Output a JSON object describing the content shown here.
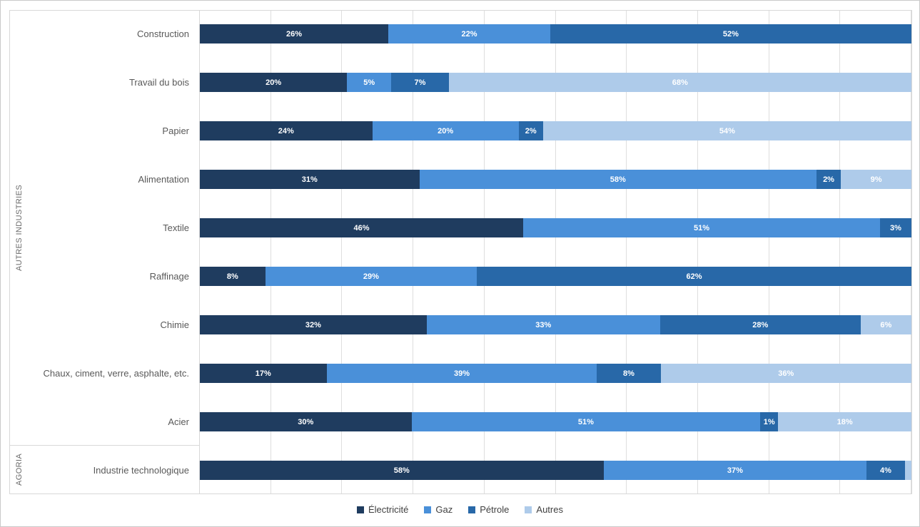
{
  "groups": [
    {
      "label": "AUTRES INDUSTRIES"
    },
    {
      "label": "AGORIA"
    }
  ],
  "legend": [
    {
      "name": "Électricité",
      "color": "#1F3C5F"
    },
    {
      "name": "Gaz",
      "color": "#4A90D9"
    },
    {
      "name": "Pétrole",
      "color": "#2868A8"
    },
    {
      "name": "Autres",
      "color": "#AECBEA"
    }
  ],
  "colors": {
    "electricite": "#1F3C5F",
    "gaz": "#4A90D9",
    "petrole": "#2868A8",
    "autres": "#AECBEA",
    "gridline": "#DEDEDE",
    "frame_border": "#D8D8D8",
    "category_text": "#595959",
    "legend_text": "#404040",
    "value_label_text": "#FFFFFF"
  },
  "chart_data": {
    "type": "bar",
    "variant": "horizontal-stacked-100",
    "unit": "percent",
    "xlim": [
      0,
      100
    ],
    "grid": {
      "vertical": true,
      "step_percent": 10,
      "horizontal": false
    },
    "axis_tick_labels_visible": false,
    "legend_position": "bottom-center",
    "series_names": [
      "Électricité",
      "Gaz",
      "Pétrole",
      "Autres"
    ],
    "categories": [
      "Construction",
      "Travail du bois",
      "Papier",
      "Alimentation",
      "Textile",
      "Raffinage",
      "Chimie",
      "Chaux, ciment, verre, asphalte, etc.",
      "Acier",
      "Industrie technologique"
    ],
    "rows": [
      {
        "category": "Construction",
        "group": "AUTRES INDUSTRIES",
        "segments": [
          {
            "series": "Électricité",
            "value": 26,
            "label": "26%"
          },
          {
            "series": "Gaz",
            "value": 22,
            "label": "22%"
          },
          {
            "series": "Pétrole",
            "value": 52,
            "label": "52%"
          },
          {
            "series": "Autres",
            "value": 0,
            "label": ""
          }
        ]
      },
      {
        "category": "Travail du bois",
        "group": "AUTRES INDUSTRIES",
        "segments": [
          {
            "series": "Électricité",
            "value": 20,
            "label": "20%"
          },
          {
            "series": "Gaz",
            "value": 5,
            "label": "5%"
          },
          {
            "series": "Pétrole",
            "value": 7,
            "label": "7%"
          },
          {
            "series": "Autres",
            "value": 68,
            "label": "68%"
          }
        ]
      },
      {
        "category": "Papier",
        "group": "AUTRES INDUSTRIES",
        "segments": [
          {
            "series": "Électricité",
            "value": 24,
            "label": "24%"
          },
          {
            "series": "Gaz",
            "value": 20,
            "label": "20%"
          },
          {
            "series": "Pétrole",
            "value": 2,
            "label": "2%"
          },
          {
            "series": "Autres",
            "value": 54,
            "label": "54%"
          }
        ]
      },
      {
        "category": "Alimentation",
        "group": "AUTRES INDUSTRIES",
        "segments": [
          {
            "series": "Électricité",
            "value": 31,
            "label": "31%"
          },
          {
            "series": "Gaz",
            "value": 58,
            "label": "58%"
          },
          {
            "series": "Pétrole",
            "value": 2,
            "label": "2%"
          },
          {
            "series": "Autres",
            "value": 9,
            "label": "9%"
          }
        ]
      },
      {
        "category": "Textile",
        "group": "AUTRES INDUSTRIES",
        "segments": [
          {
            "series": "Électricité",
            "value": 46,
            "label": "46%"
          },
          {
            "series": "Gaz",
            "value": 51,
            "label": "51%"
          },
          {
            "series": "Pétrole",
            "value": 3,
            "label": "3%"
          },
          {
            "series": "Autres",
            "value": 0,
            "label": ""
          }
        ]
      },
      {
        "category": "Raffinage",
        "group": "AUTRES INDUSTRIES",
        "segments": [
          {
            "series": "Électricité",
            "value": 8,
            "label": "8%"
          },
          {
            "series": "Gaz",
            "value": 29,
            "label": "29%"
          },
          {
            "series": "Pétrole",
            "value": 62,
            "label": "62%"
          },
          {
            "series": "Autres",
            "value": 0,
            "label": ""
          }
        ]
      },
      {
        "category": "Chimie",
        "group": "AUTRES INDUSTRIES",
        "segments": [
          {
            "series": "Électricité",
            "value": 32,
            "label": "32%"
          },
          {
            "series": "Gaz",
            "value": 33,
            "label": "33%"
          },
          {
            "series": "Pétrole",
            "value": 28,
            "label": "28%"
          },
          {
            "series": "Autres",
            "value": 6,
            "label": "6%"
          }
        ]
      },
      {
        "category": "Chaux, ciment, verre, asphalte, etc.",
        "group": "AUTRES INDUSTRIES",
        "segments": [
          {
            "series": "Électricité",
            "value": 17,
            "label": "17%"
          },
          {
            "series": "Gaz",
            "value": 39,
            "label": "39%"
          },
          {
            "series": "Pétrole",
            "value": 8,
            "label": "8%"
          },
          {
            "series": "Autres",
            "value": 36,
            "label": "36%"
          }
        ]
      },
      {
        "category": "Acier",
        "group": "AUTRES INDUSTRIES",
        "segments": [
          {
            "series": "Électricité",
            "value": 30,
            "label": "30%"
          },
          {
            "series": "Gaz",
            "value": 51,
            "label": "51%"
          },
          {
            "series": "Pétrole",
            "value": 1,
            "label": "1%"
          },
          {
            "series": "Autres",
            "value": 18,
            "label": "18%"
          }
        ]
      },
      {
        "category": "Industrie technologique",
        "group": "AGORIA",
        "segments": [
          {
            "series": "Électricité",
            "value": 58,
            "label": "58%"
          },
          {
            "series": "Gaz",
            "value": 37,
            "label": "37%"
          },
          {
            "series": "Pétrole",
            "value": 4,
            "label": "4%"
          },
          {
            "series": "Autres",
            "value": 1,
            "label": ""
          }
        ]
      }
    ]
  }
}
